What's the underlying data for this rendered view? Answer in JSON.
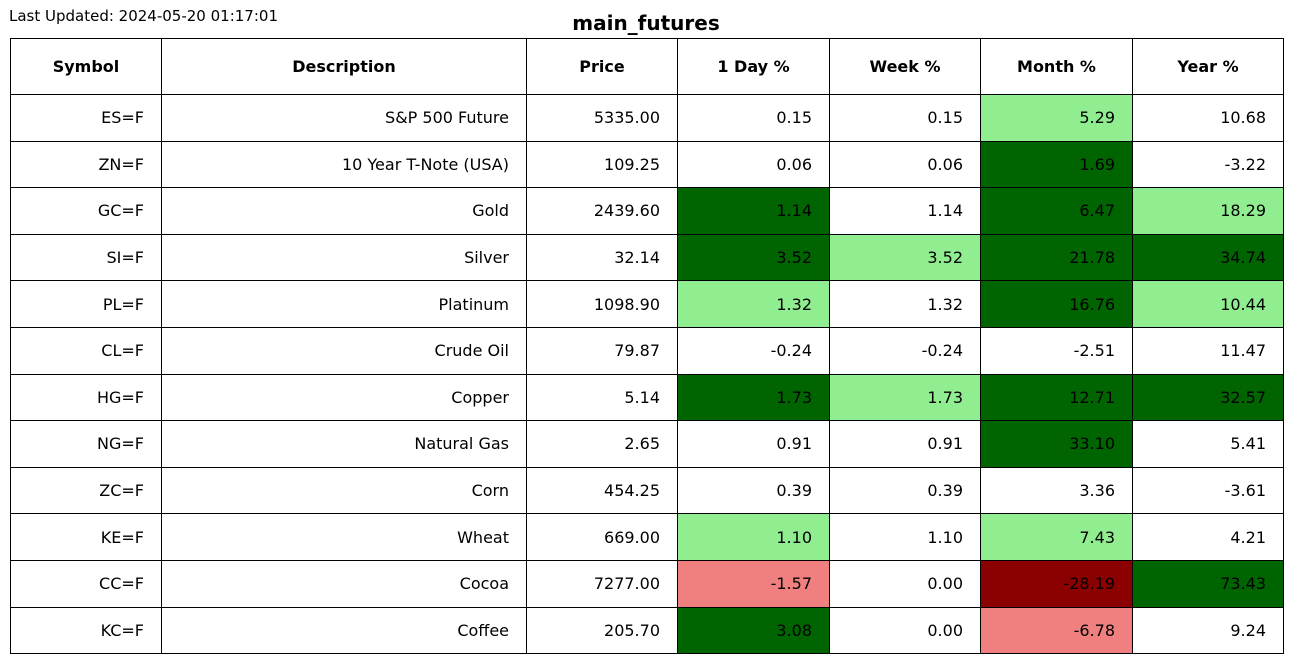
{
  "last_updated": "Last Updated: 2024-05-20 01:17:01",
  "title": "main_futures",
  "colors": {
    "strong_positive": "#006400",
    "positive": "#90ee90",
    "neutral": "#ffffff",
    "negative": "#f08080",
    "strong_negative": "#8b0000"
  },
  "chart_data": {
    "type": "table",
    "title": "main_futures",
    "columns": [
      "Symbol",
      "Description",
      "Price",
      "1 Day %",
      "Week %",
      "Month %",
      "Year %"
    ],
    "rows": [
      [
        "ES=F",
        "S&P 500 Future",
        "5335.00",
        "0.15",
        "0.15",
        "5.29",
        "10.68"
      ],
      [
        "ZN=F",
        "10 Year T-Note (USA)",
        "109.25",
        "0.06",
        "0.06",
        "1.69",
        "-3.22"
      ],
      [
        "GC=F",
        "Gold",
        "2439.60",
        "1.14",
        "1.14",
        "6.47",
        "18.29"
      ],
      [
        "SI=F",
        "Silver",
        "32.14",
        "3.52",
        "3.52",
        "21.78",
        "34.74"
      ],
      [
        "PL=F",
        "Platinum",
        "1098.90",
        "1.32",
        "1.32",
        "16.76",
        "10.44"
      ],
      [
        "CL=F",
        "Crude Oil",
        "79.87",
        "-0.24",
        "-0.24",
        "-2.51",
        "11.47"
      ],
      [
        "HG=F",
        "Copper",
        "5.14",
        "1.73",
        "1.73",
        "12.71",
        "32.57"
      ],
      [
        "NG=F",
        "Natural Gas",
        "2.65",
        "0.91",
        "0.91",
        "33.10",
        "5.41"
      ],
      [
        "ZC=F",
        "Corn",
        "454.25",
        "0.39",
        "0.39",
        "3.36",
        "-3.61"
      ],
      [
        "KE=F",
        "Wheat",
        "669.00",
        "1.10",
        "1.10",
        "7.43",
        "4.21"
      ],
      [
        "CC=F",
        "Cocoa",
        "7277.00",
        "-1.57",
        "0.00",
        "-28.19",
        "73.43"
      ],
      [
        "KC=F",
        "Coffee",
        "205.70",
        "3.08",
        "0.00",
        "-6.78",
        "9.24"
      ]
    ],
    "cell_colors": [
      [
        "neutral",
        "neutral",
        "neutral",
        "neutral",
        "neutral",
        "positive",
        "neutral"
      ],
      [
        "neutral",
        "neutral",
        "neutral",
        "neutral",
        "neutral",
        "strong_positive",
        "neutral"
      ],
      [
        "neutral",
        "neutral",
        "neutral",
        "strong_positive",
        "neutral",
        "strong_positive",
        "positive"
      ],
      [
        "neutral",
        "neutral",
        "neutral",
        "strong_positive",
        "positive",
        "strong_positive",
        "strong_positive"
      ],
      [
        "neutral",
        "neutral",
        "neutral",
        "positive",
        "neutral",
        "strong_positive",
        "positive"
      ],
      [
        "neutral",
        "neutral",
        "neutral",
        "neutral",
        "neutral",
        "neutral",
        "neutral"
      ],
      [
        "neutral",
        "neutral",
        "neutral",
        "strong_positive",
        "positive",
        "strong_positive",
        "strong_positive"
      ],
      [
        "neutral",
        "neutral",
        "neutral",
        "neutral",
        "neutral",
        "strong_positive",
        "neutral"
      ],
      [
        "neutral",
        "neutral",
        "neutral",
        "neutral",
        "neutral",
        "neutral",
        "neutral"
      ],
      [
        "neutral",
        "neutral",
        "neutral",
        "positive",
        "neutral",
        "positive",
        "neutral"
      ],
      [
        "neutral",
        "neutral",
        "neutral",
        "negative",
        "neutral",
        "strong_negative",
        "strong_positive"
      ],
      [
        "neutral",
        "neutral",
        "neutral",
        "strong_positive",
        "neutral",
        "negative",
        "neutral"
      ]
    ]
  }
}
